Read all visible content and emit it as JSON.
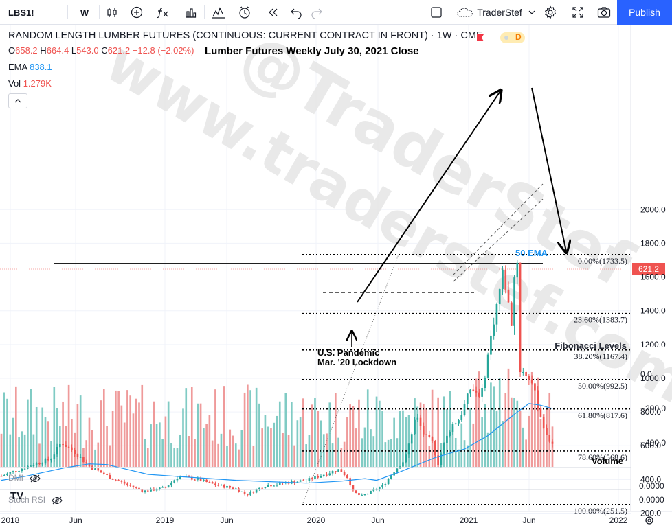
{
  "toolbar": {
    "symbol": "LBS1!",
    "interval": "W",
    "layout_name": "TraderStef",
    "publish": "Publish"
  },
  "header": {
    "title": "RANDOM LENGTH LUMBER FUTURES (CONTINUOUS: CURRENT CONTRACT IN FRONT) · 1W · CME",
    "ohlc": {
      "O": "658.2",
      "H": "664.4",
      "L": "543.0",
      "C": "621.2",
      "change": "−12.8 (−2.02%)"
    },
    "note": "Lumber Futures Weekly July 30, 2021 Close",
    "ema_label": "EMA",
    "ema_value": "838.1",
    "vol_label": "Vol",
    "vol_value": "1.279K",
    "d_badge": "D"
  },
  "panes": {
    "dmi": "DMI",
    "stoch": "Stoch RSI",
    "dmi_value": "0.0000",
    "stoch_value": "0.0000"
  },
  "colors": {
    "up": "#26a69a",
    "down": "#ef5350",
    "ema": "#2196f3",
    "vol_up": "#80cbc4",
    "vol_down": "#ef9a9a",
    "accent": "#2962ff"
  },
  "chart_data": {
    "type": "candlestick",
    "ylim": [
      0,
      2000
    ],
    "y_ticks": [
      2000,
      1800,
      1600,
      1400,
      1200,
      1000,
      800,
      600,
      400,
      200
    ],
    "y_tick_labels": [
      "2000.0",
      "1800.0",
      "1600.0",
      "1400.0",
      "1200.0",
      "1000.0",
      "800.0",
      "600.0",
      "400.0",
      "200.0"
    ],
    "x_ticks": [
      "2018",
      "Jun",
      "2019",
      "Jun",
      "2020",
      "Jun",
      "2021",
      "Jun",
      "2022"
    ],
    "last_price": "621.2",
    "ema_name": "50 EMA",
    "ema_waypoints": [
      [
        0,
        395
      ],
      [
        8,
        418
      ],
      [
        22,
        470
      ],
      [
        30,
        492
      ],
      [
        36,
        488
      ],
      [
        50,
        430
      ],
      [
        80,
        395
      ],
      [
        104,
        378
      ],
      [
        116,
        390
      ],
      [
        124,
        405
      ],
      [
        128,
        395
      ],
      [
        136,
        445
      ],
      [
        148,
        530
      ],
      [
        158,
        580
      ],
      [
        166,
        660
      ],
      [
        176,
        800
      ],
      [
        180,
        850
      ],
      [
        184,
        840
      ],
      [
        188,
        820
      ]
    ],
    "fibonacci": [
      {
        "label": "0.00%(1733.5)",
        "value": 1733.5
      },
      {
        "label": "23.60%(1383.7)",
        "value": 1383.7
      },
      {
        "label": "38.20%(1167.4)",
        "value": 1167.4
      },
      {
        "label": "50.00%(992.5)",
        "value": 992.5
      },
      {
        "label": "61.80%(817.6)",
        "value": 817.6
      },
      {
        "label": "78.60%(568.6)",
        "value": 568.6
      },
      {
        "label": "100.00%(251.5)",
        "value": 251.5
      }
    ],
    "fib_title": "Fibonacci Levels",
    "annotations": {
      "pandemic_line1": "U.S. Pandemic",
      "pandemic_line2": "Mar. '20 Lockdown",
      "ema_tag": "50 EMA"
    },
    "volume": {
      "name": "Volume",
      "y_ticks": [
        0,
        -200,
        -400
      ],
      "y_tick_labels": [
        "0.0",
        "−200.0",
        "−400.0"
      ]
    },
    "watermark_line1": "@TraderStef",
    "watermark_line2": "www.traderstef.com"
  }
}
